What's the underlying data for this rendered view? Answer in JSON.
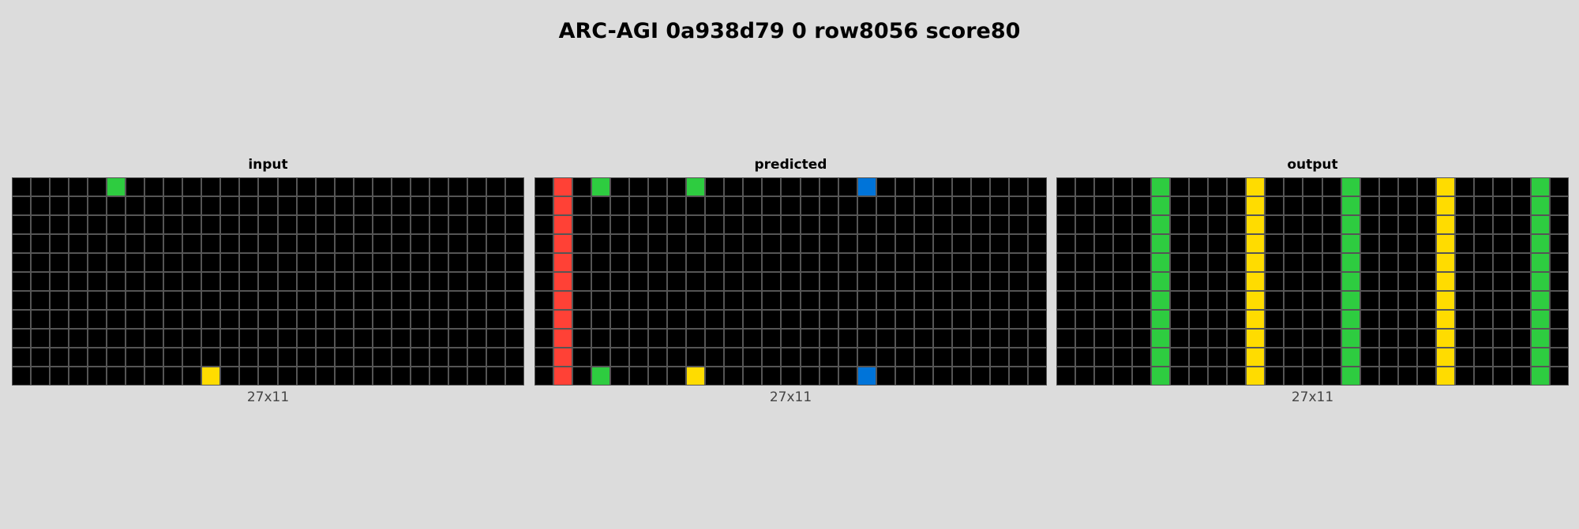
{
  "title": "ARC-AGI 0a938d79 0 row8056 score80",
  "palette": {
    "0": "#000000",
    "1": "#0074d9",
    "2": "#ff4136",
    "3": "#2ecc40",
    "4": "#ffdc00"
  },
  "panels": [
    {
      "label": "input",
      "dims": "27x11",
      "rows": 11,
      "cols": 27,
      "background": 0,
      "cells": [
        {
          "r": 0,
          "c": 5,
          "v": 3
        },
        {
          "r": 10,
          "c": 10,
          "v": 4
        }
      ],
      "columns": []
    },
    {
      "label": "predicted",
      "dims": "27x11",
      "rows": 11,
      "cols": 27,
      "background": 0,
      "cells": [
        {
          "r": 0,
          "c": 3,
          "v": 3
        },
        {
          "r": 10,
          "c": 3,
          "v": 3
        },
        {
          "r": 0,
          "c": 8,
          "v": 3
        },
        {
          "r": 10,
          "c": 8,
          "v": 4
        },
        {
          "r": 0,
          "c": 17,
          "v": 1
        },
        {
          "r": 10,
          "c": 17,
          "v": 1
        }
      ],
      "columns": [
        {
          "c": 1,
          "v": 2
        }
      ]
    },
    {
      "label": "output",
      "dims": "27x11",
      "rows": 11,
      "cols": 27,
      "background": 0,
      "cells": [],
      "columns": [
        {
          "c": 5,
          "v": 3
        },
        {
          "c": 10,
          "v": 4
        },
        {
          "c": 15,
          "v": 3
        },
        {
          "c": 20,
          "v": 4
        },
        {
          "c": 25,
          "v": 3
        }
      ]
    }
  ]
}
